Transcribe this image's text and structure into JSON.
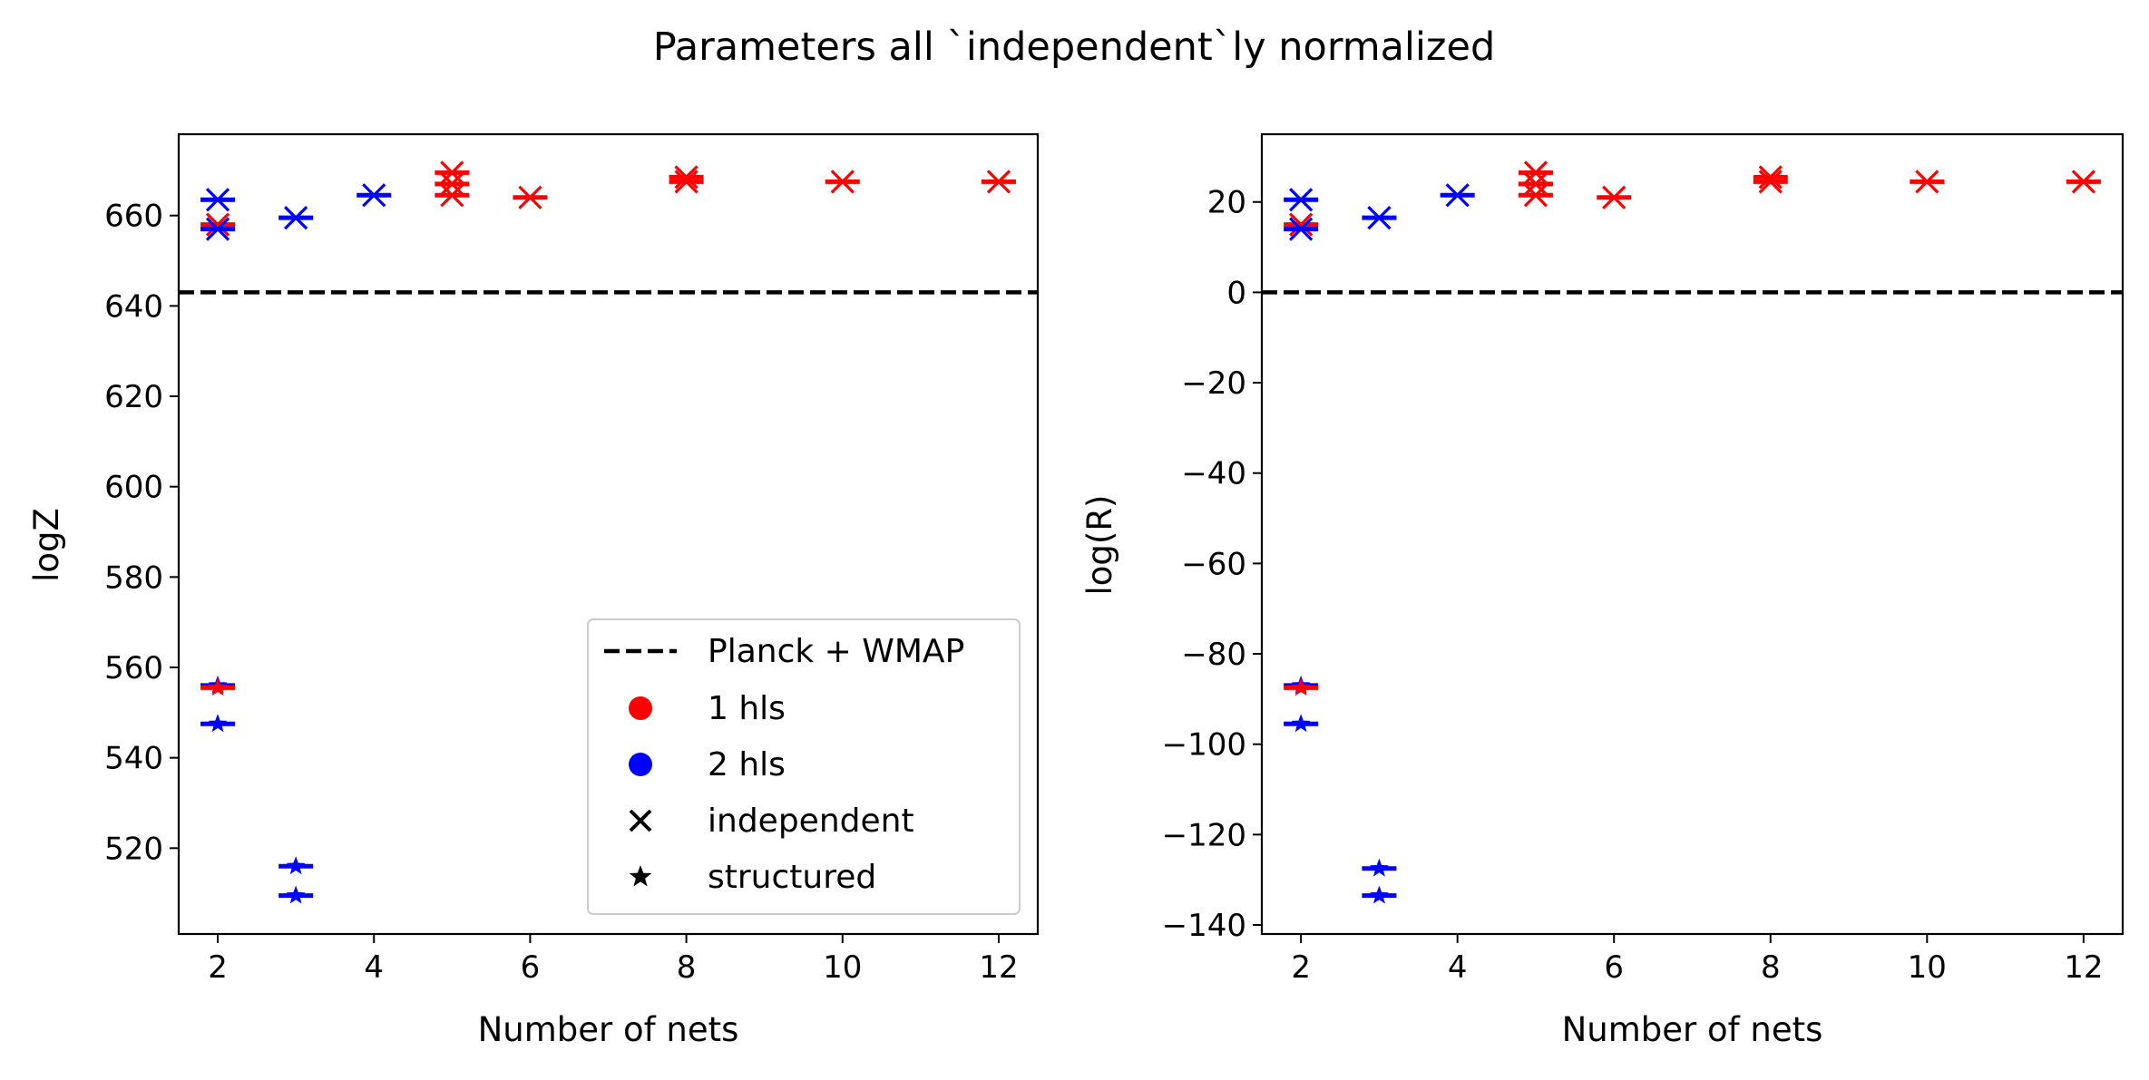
{
  "figure": {
    "suptitle": "Parameters all `independent`ly normalized"
  },
  "legend": {
    "placement": "lower right (left panel)",
    "entries": [
      {
        "label": "Planck + WMAP",
        "marker": "dashed-line",
        "color": "#000000"
      },
      {
        "label": "1 hls",
        "marker": "circle",
        "color": "#ff0000"
      },
      {
        "label": "2 hls",
        "marker": "circle",
        "color": "#0000ff"
      },
      {
        "label": "independent",
        "marker": "x",
        "color": "#000000"
      },
      {
        "label": "structured",
        "marker": "star",
        "color": "#000000"
      }
    ]
  },
  "colors": {
    "hls1": "#ff0000",
    "hls2": "#0000ff",
    "reference": "#000000"
  },
  "chart_data": [
    {
      "type": "scatter",
      "xlabel": "Number of nets",
      "ylabel": "logZ",
      "xlim": [
        1.5,
        12.5
      ],
      "ylim": [
        501,
        678
      ],
      "xticks": [
        2,
        4,
        6,
        8,
        10,
        12
      ],
      "yticks": [
        520,
        540,
        560,
        580,
        600,
        620,
        640,
        660
      ],
      "reference_line": {
        "y": 643,
        "style": "dashed",
        "label": "Planck + WMAP"
      },
      "grid": false,
      "points": [
        {
          "x": 2,
          "y": 658,
          "hls": 1,
          "kind": "independent"
        },
        {
          "x": 2,
          "y": 663.5,
          "hls": 2,
          "kind": "independent"
        },
        {
          "x": 2,
          "y": 657,
          "hls": 2,
          "kind": "independent"
        },
        {
          "x": 3,
          "y": 659.5,
          "hls": 2,
          "kind": "independent"
        },
        {
          "x": 4,
          "y": 664.5,
          "hls": 2,
          "kind": "independent"
        },
        {
          "x": 5,
          "y": 669.5,
          "hls": 1,
          "kind": "independent"
        },
        {
          "x": 5,
          "y": 667,
          "hls": 1,
          "kind": "independent"
        },
        {
          "x": 5,
          "y": 664.5,
          "hls": 1,
          "kind": "independent"
        },
        {
          "x": 6,
          "y": 664,
          "hls": 1,
          "kind": "independent"
        },
        {
          "x": 8,
          "y": 668.5,
          "hls": 1,
          "kind": "independent"
        },
        {
          "x": 8,
          "y": 667.5,
          "hls": 1,
          "kind": "independent"
        },
        {
          "x": 10,
          "y": 667.5,
          "hls": 1,
          "kind": "independent"
        },
        {
          "x": 12,
          "y": 667.5,
          "hls": 1,
          "kind": "independent"
        },
        {
          "x": 2,
          "y": 556,
          "hls": 2,
          "kind": "structured"
        },
        {
          "x": 2,
          "y": 555.5,
          "hls": 1,
          "kind": "structured"
        },
        {
          "x": 2,
          "y": 547.5,
          "hls": 2,
          "kind": "structured"
        },
        {
          "x": 3,
          "y": 516,
          "hls": 2,
          "kind": "structured"
        },
        {
          "x": 3,
          "y": 509.5,
          "hls": 2,
          "kind": "structured"
        }
      ]
    },
    {
      "type": "scatter",
      "xlabel": "Number of nets",
      "ylabel": "log(R)",
      "xlim": [
        1.5,
        12.5
      ],
      "ylim": [
        -142,
        35
      ],
      "xticks": [
        2,
        4,
        6,
        8,
        10,
        12
      ],
      "yticks": [
        -140,
        -120,
        -100,
        -80,
        -60,
        -40,
        -20,
        0,
        20
      ],
      "reference_line": {
        "y": 0,
        "style": "dashed",
        "label": "Planck + WMAP"
      },
      "grid": false,
      "points": [
        {
          "x": 2,
          "y": 15,
          "hls": 1,
          "kind": "independent"
        },
        {
          "x": 2,
          "y": 20.5,
          "hls": 2,
          "kind": "independent"
        },
        {
          "x": 2,
          "y": 14,
          "hls": 2,
          "kind": "independent"
        },
        {
          "x": 3,
          "y": 16.5,
          "hls": 2,
          "kind": "independent"
        },
        {
          "x": 4,
          "y": 21.5,
          "hls": 2,
          "kind": "independent"
        },
        {
          "x": 5,
          "y": 26.5,
          "hls": 1,
          "kind": "independent"
        },
        {
          "x": 5,
          "y": 24,
          "hls": 1,
          "kind": "independent"
        },
        {
          "x": 5,
          "y": 21.5,
          "hls": 1,
          "kind": "independent"
        },
        {
          "x": 6,
          "y": 21,
          "hls": 1,
          "kind": "independent"
        },
        {
          "x": 8,
          "y": 25.5,
          "hls": 1,
          "kind": "independent"
        },
        {
          "x": 8,
          "y": 24.5,
          "hls": 1,
          "kind": "independent"
        },
        {
          "x": 10,
          "y": 24.5,
          "hls": 1,
          "kind": "independent"
        },
        {
          "x": 12,
          "y": 24.5,
          "hls": 1,
          "kind": "independent"
        },
        {
          "x": 2,
          "y": -87,
          "hls": 2,
          "kind": "structured"
        },
        {
          "x": 2,
          "y": -87.5,
          "hls": 1,
          "kind": "structured"
        },
        {
          "x": 2,
          "y": -95.5,
          "hls": 2,
          "kind": "structured"
        },
        {
          "x": 3,
          "y": -127.5,
          "hls": 2,
          "kind": "structured"
        },
        {
          "x": 3,
          "y": -133.5,
          "hls": 2,
          "kind": "structured"
        }
      ]
    }
  ]
}
